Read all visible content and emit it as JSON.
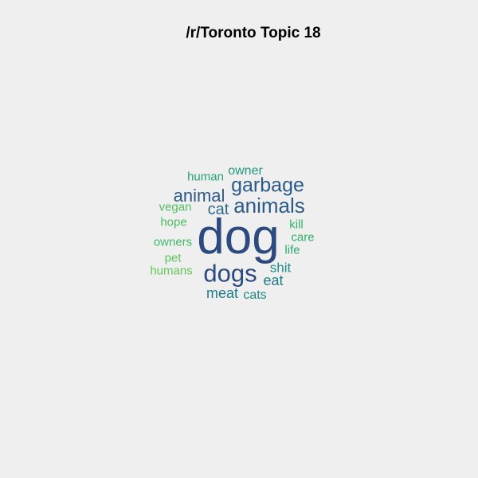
{
  "chart_data": {
    "type": "wordcloud",
    "title": "/r/Toronto Topic 18",
    "words": [
      {
        "text": "dog",
        "weight": 1.0,
        "color": "#2c4a80"
      },
      {
        "text": "dogs",
        "weight": 0.5,
        "color": "#2c4a80"
      },
      {
        "text": "animals",
        "weight": 0.43,
        "color": "#2a5a88"
      },
      {
        "text": "garbage",
        "weight": 0.42,
        "color": "#2a5a88"
      },
      {
        "text": "animal",
        "weight": 0.38,
        "color": "#2a5a88"
      },
      {
        "text": "cat",
        "weight": 0.34,
        "color": "#2a6a8a"
      },
      {
        "text": "meat",
        "weight": 0.3,
        "color": "#1f7a88"
      },
      {
        "text": "eat",
        "weight": 0.3,
        "color": "#1f7a88"
      },
      {
        "text": "shit",
        "weight": 0.28,
        "color": "#1f8a85"
      },
      {
        "text": "cats",
        "weight": 0.27,
        "color": "#1f8a85"
      },
      {
        "text": "owner",
        "weight": 0.27,
        "color": "#1f9a80"
      },
      {
        "text": "human",
        "weight": 0.25,
        "color": "#26a078"
      },
      {
        "text": "life",
        "weight": 0.25,
        "color": "#2ba872"
      },
      {
        "text": "care",
        "weight": 0.24,
        "color": "#30ae6e"
      },
      {
        "text": "kill",
        "weight": 0.24,
        "color": "#35b26a"
      },
      {
        "text": "owners",
        "weight": 0.24,
        "color": "#40b866"
      },
      {
        "text": "hope",
        "weight": 0.23,
        "color": "#4cbc60"
      },
      {
        "text": "vegan",
        "weight": 0.23,
        "color": "#52be5e"
      },
      {
        "text": "pet",
        "weight": 0.22,
        "color": "#5cc25a"
      },
      {
        "text": "humans",
        "weight": 0.22,
        "color": "#66c556"
      }
    ]
  }
}
